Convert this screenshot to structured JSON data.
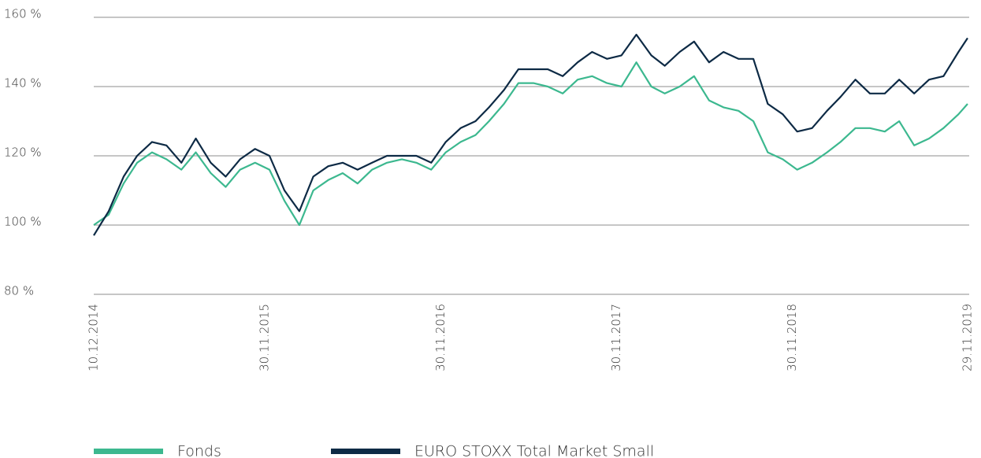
{
  "chart_data": {
    "type": "line",
    "x": [
      "10.12.2014",
      "10.01.2015",
      "10.02.2015",
      "10.03.2015",
      "10.04.2015",
      "10.05.2015",
      "10.06.2015",
      "10.07.2015",
      "10.08.2015",
      "10.09.2015",
      "10.10.2015",
      "10.11.2015",
      "10.12.2015",
      "10.01.2016",
      "10.02.2016",
      "10.03.2016",
      "10.04.2016",
      "10.05.2016",
      "10.06.2016",
      "10.07.2016",
      "10.08.2016",
      "10.09.2016",
      "10.10.2016",
      "10.11.2016",
      "10.12.2016",
      "10.01.2017",
      "10.02.2017",
      "10.03.2017",
      "10.04.2017",
      "10.05.2017",
      "10.06.2017",
      "10.07.2017",
      "10.08.2017",
      "10.09.2017",
      "10.10.2017",
      "10.11.2017",
      "10.12.2017",
      "10.01.2018",
      "10.02.2018",
      "10.03.2018",
      "10.04.2018",
      "10.05.2018",
      "10.06.2018",
      "10.07.2018",
      "10.08.2018",
      "10.09.2018",
      "10.10.2018",
      "10.11.2018",
      "10.12.2018",
      "10.01.2019",
      "10.02.2019",
      "10.03.2019",
      "10.04.2019",
      "10.05.2019",
      "10.06.2019",
      "10.07.2019",
      "10.08.2019",
      "10.09.2019",
      "10.10.2019",
      "10.11.2019",
      "29.11.2019"
    ],
    "series": [
      {
        "name": "Fonds",
        "color": "#3cb88f",
        "values": [
          100,
          103,
          112,
          118,
          121,
          119,
          116,
          121,
          115,
          111,
          116,
          118,
          116,
          107,
          100,
          110,
          113,
          115,
          112,
          116,
          118,
          119,
          118,
          116,
          121,
          124,
          126,
          130,
          135,
          141,
          141,
          140,
          138,
          142,
          143,
          141,
          140,
          147,
          140,
          138,
          140,
          143,
          136,
          134,
          133,
          130,
          121,
          119,
          116,
          118,
          121,
          124,
          128,
          128,
          127,
          130,
          123,
          125,
          128,
          132,
          135
        ]
      },
      {
        "name": "EURO STOXX Total Market Small",
        "color": "#0d2a45",
        "values": [
          97,
          104,
          114,
          120,
          124,
          123,
          118,
          125,
          118,
          114,
          119,
          122,
          120,
          110,
          104,
          114,
          117,
          118,
          116,
          118,
          120,
          120,
          120,
          118,
          124,
          128,
          130,
          134,
          139,
          145,
          145,
          145,
          143,
          147,
          150,
          148,
          149,
          155,
          149,
          146,
          150,
          153,
          147,
          150,
          148,
          148,
          135,
          132,
          127,
          128,
          133,
          137,
          142,
          138,
          138,
          142,
          138,
          142,
          143,
          150,
          154
        ]
      }
    ],
    "xlim": [
      "10.12.2014",
      "29.11.2019"
    ],
    "xticks": [
      "10.12.2014",
      "30.11.2015",
      "30.11.2016",
      "30.11.2017",
      "30.11.2018",
      "29.11.2019"
    ],
    "ylim": [
      80,
      160
    ],
    "yticks": [
      {
        "value": 80,
        "label": "80 %"
      },
      {
        "value": 100,
        "label": "100 %"
      },
      {
        "value": 120,
        "label": "120 %"
      },
      {
        "value": 140,
        "label": "140 %"
      },
      {
        "value": 160,
        "label": "160 %"
      }
    ],
    "grid": true,
    "legend": "bottom"
  }
}
